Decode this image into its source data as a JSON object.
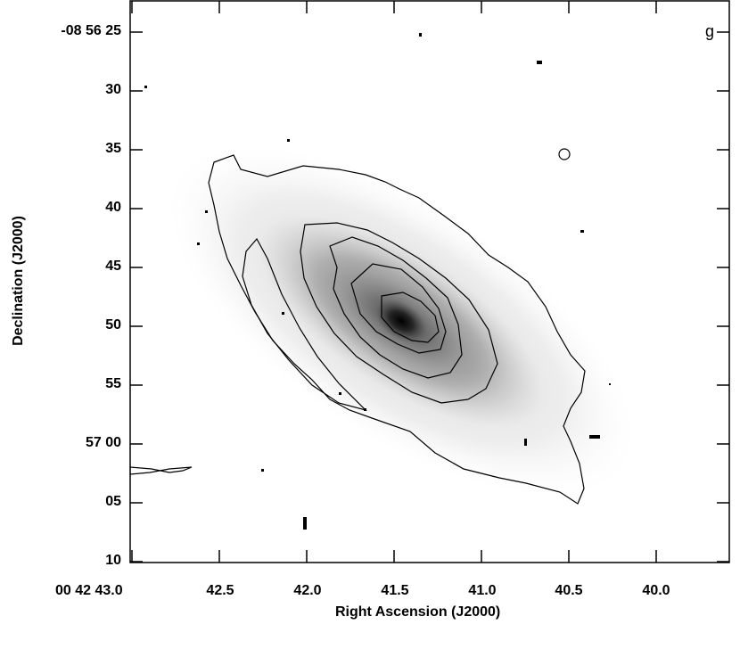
{
  "band_label": "g",
  "xlabel": "Right Ascension (J2000)",
  "ylabel": "Declination (J2000)",
  "x_ticks": [
    "00 42 43.0",
    "42.5",
    "42.0",
    "41.5",
    "41.0",
    "40.5",
    "40.0"
  ],
  "y_ticks": [
    "-08 56 25",
    "30",
    "35",
    "40",
    "45",
    "50",
    "55",
    "57 00",
    "05",
    "10"
  ],
  "colors": {
    "frame": "#000000",
    "contour": "#000000",
    "background": "#ffffff",
    "core": "#0a0a0a"
  }
}
